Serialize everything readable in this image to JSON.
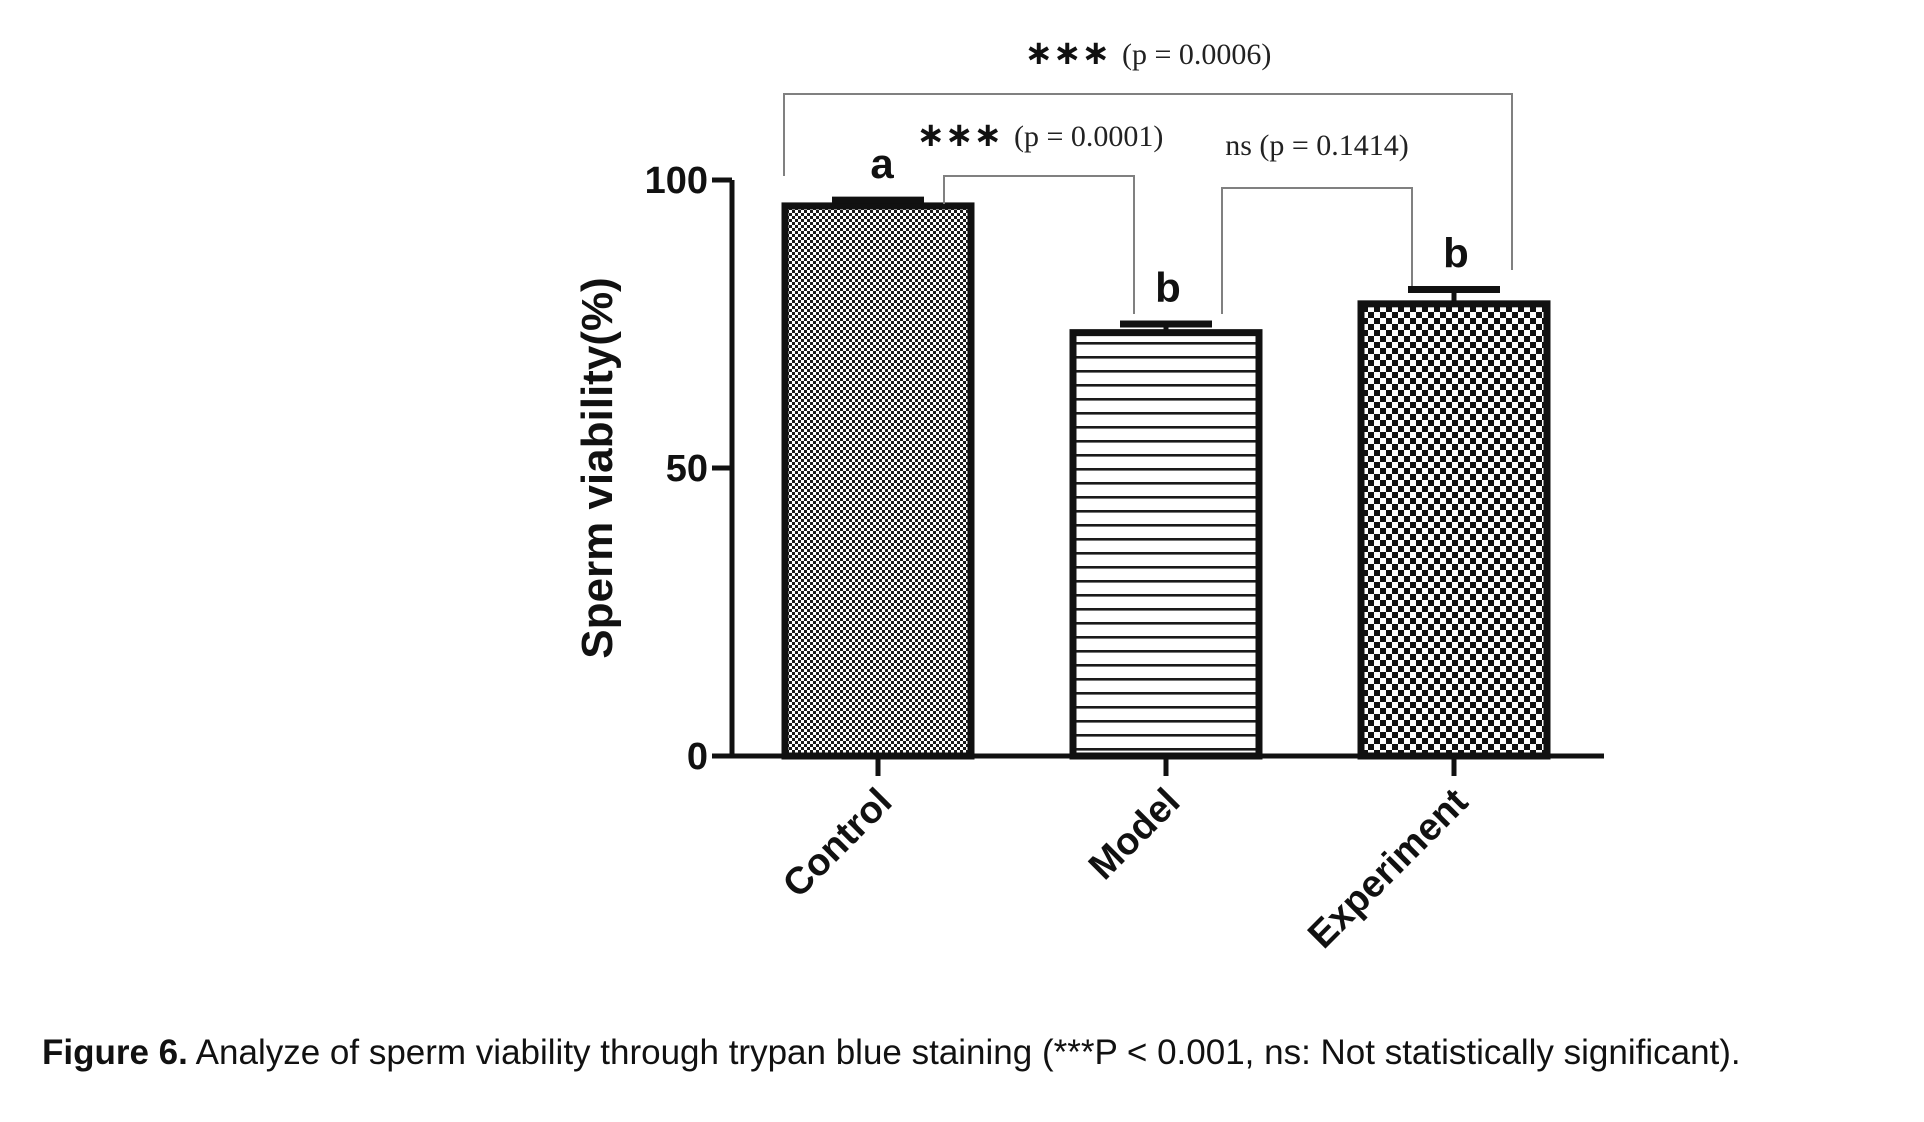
{
  "chart_data": {
    "type": "bar",
    "categories": [
      "Control",
      "Model",
      "Experiment"
    ],
    "values": [
      95.5,
      73.5,
      78.5
    ],
    "errors": [
      1.0,
      1.5,
      2.5
    ],
    "letters": [
      "a",
      "b",
      "b"
    ],
    "patterns": [
      "fine-checker",
      "horizontal-lines",
      "coarse-checker"
    ],
    "title": "",
    "xlabel": "",
    "ylabel": "Sperm viability(%)",
    "ylim": [
      0,
      100
    ],
    "yticks": [
      "0",
      "50",
      "100"
    ],
    "comparisons": [
      {
        "from": 0,
        "to": 2,
        "stars": "∗∗∗",
        "p_text": "(p = 0.0006)",
        "ns_text": ""
      },
      {
        "from": 0,
        "to": 1,
        "stars": "∗∗∗",
        "p_text": "(p = 0.0001)",
        "ns_text": ""
      },
      {
        "from": 1,
        "to": 2,
        "stars": "",
        "p_text": "(p = 0.1414)",
        "ns_text": "ns"
      }
    ]
  },
  "caption": {
    "label": "Figure 6.",
    "text": " Analyze of sperm viability through trypan blue staining (***P < 0.001, ns: Not statistically significant)."
  },
  "colors": {
    "ink": "#111111",
    "bracket": "#808080",
    "background": "#ffffff"
  }
}
